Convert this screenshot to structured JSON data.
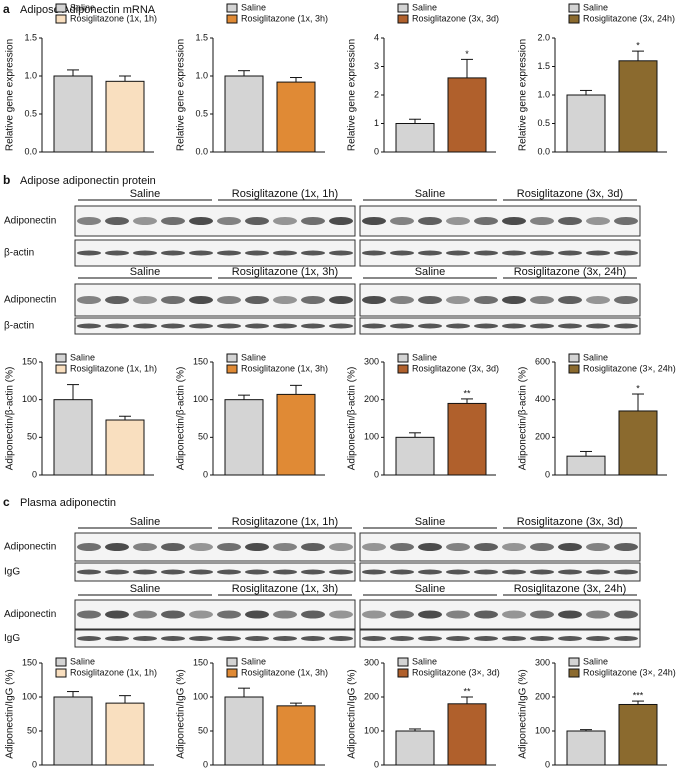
{
  "sections": [
    {
      "letter": "a",
      "title": "Adipose Adiponectin mRNA"
    },
    {
      "letter": "b",
      "title": "Adipose adiponectin protein",
      "blot_rows": [
        {
          "row_labels": [
            "Adiponectin",
            "β-actin"
          ],
          "blots": [
            {
              "groups": [
                "Saline",
                "Rosiglitazone (1x, 1h)"
              ]
            },
            {
              "groups": [
                "Saline",
                "Rosiglitazone (3x, 3d)"
              ]
            }
          ]
        },
        {
          "row_labels": [
            "Adiponectin",
            "β-actin"
          ],
          "blots": [
            {
              "groups": [
                "Saline",
                "Rosiglitazone (1x, 3h)"
              ]
            },
            {
              "groups": [
                "Saline",
                "Rosiglitazone (3x, 24h)"
              ]
            }
          ]
        }
      ]
    },
    {
      "letter": "c",
      "title": "Plasma adiponectin",
      "blot_rows": [
        {
          "row_labels": [
            "Adiponectin",
            "IgG"
          ],
          "blots": [
            {
              "groups": [
                "Saline",
                "Rosiglitazone (1x, 1h)"
              ]
            },
            {
              "groups": [
                "Saline",
                "Rosiglitazone (3x, 3d)"
              ]
            }
          ]
        },
        {
          "row_labels": [
            "Adiponectin",
            "IgG"
          ],
          "blots": [
            {
              "groups": [
                "Saline",
                "Rosiglitazone (1x, 3h)"
              ]
            },
            {
              "groups": [
                "Saline",
                "Rosiglitazone (3x, 24h)"
              ]
            }
          ]
        }
      ]
    }
  ],
  "chart_data": [
    {
      "type": "bar",
      "ylabel": "Relative gene expression",
      "ylim": [
        0,
        1.5
      ],
      "yticks": [
        {
          "value": 0,
          "label": "0.0"
        },
        0.5,
        {
          "value": 1,
          "label": "1.0"
        },
        1.5
      ],
      "series": [
        {
          "name": "Saline",
          "color": "#d4d4d4",
          "values": [
            1.0
          ],
          "errors": [
            0.08
          ]
        },
        {
          "name": "Rosiglitazone (1x, 1h)",
          "color": "#f9dfbf",
          "values": [
            0.93
          ],
          "errors": [
            0.07
          ]
        }
      ]
    },
    {
      "type": "bar",
      "ylabel": "Relative gene expression",
      "ylim": [
        0,
        1.5
      ],
      "yticks": [
        {
          "value": 0,
          "label": "0.0"
        },
        0.5,
        {
          "value": 1,
          "label": "1.0"
        },
        1.5
      ],
      "series": [
        {
          "name": "Saline",
          "color": "#d4d4d4",
          "values": [
            1.0
          ],
          "errors": [
            0.07
          ]
        },
        {
          "name": "Rosiglitazone (1x, 3h)",
          "color": "#e08a35",
          "values": [
            0.92
          ],
          "errors": [
            0.06
          ]
        }
      ]
    },
    {
      "type": "bar",
      "ylabel": "Relative gene expression",
      "ylim": [
        0,
        4
      ],
      "yticks": [
        0,
        1,
        2,
        3,
        4
      ],
      "series": [
        {
          "name": "Saline",
          "color": "#d4d4d4",
          "values": [
            1.0
          ],
          "errors": [
            0.15
          ]
        },
        {
          "name": "Rosiglitazone (3x, 3d)",
          "color": "#b0602c",
          "values": [
            2.6
          ],
          "errors": [
            0.65
          ],
          "annotation": "*"
        }
      ]
    },
    {
      "type": "bar",
      "ylabel": "Relative gene expression",
      "ylim": [
        0,
        2
      ],
      "yticks": [
        {
          "value": 0,
          "label": "0.0"
        },
        0.5,
        {
          "value": 1,
          "label": "1.0"
        },
        1.5,
        {
          "value": 2,
          "label": "2.0"
        }
      ],
      "series": [
        {
          "name": "Saline",
          "color": "#d4d4d4",
          "values": [
            1.0
          ],
          "errors": [
            0.08
          ]
        },
        {
          "name": "Rosiglitazone (3x, 24h)",
          "color": "#8b6a2e",
          "values": [
            1.6
          ],
          "errors": [
            0.17
          ],
          "annotation": "*"
        }
      ]
    },
    {
      "type": "bar",
      "ylabel": "Adiponectin/β-actin (%)",
      "ylim": [
        0,
        150
      ],
      "yticks": [
        0,
        50,
        100,
        150
      ],
      "series": [
        {
          "name": "Saline",
          "color": "#d4d4d4",
          "values": [
            100
          ],
          "errors": [
            20
          ]
        },
        {
          "name": "Rosiglitazone (1x, 1h)",
          "color": "#f9dfbf",
          "values": [
            73
          ],
          "errors": [
            5
          ]
        }
      ]
    },
    {
      "type": "bar",
      "ylabel": "Adiponectin/β-actin (%)",
      "ylim": [
        0,
        150
      ],
      "yticks": [
        0,
        50,
        100,
        150
      ],
      "series": [
        {
          "name": "Saline",
          "color": "#d4d4d4",
          "values": [
            100
          ],
          "errors": [
            6
          ]
        },
        {
          "name": "Rosiglitazone (1x, 3h)",
          "color": "#e08a35",
          "values": [
            107
          ],
          "errors": [
            12
          ]
        }
      ]
    },
    {
      "type": "bar",
      "ylabel": "Adiponectin/β-actin (%)",
      "ylim": [
        0,
        300
      ],
      "yticks": [
        0,
        100,
        200,
        300
      ],
      "series": [
        {
          "name": "Saline",
          "color": "#d4d4d4",
          "values": [
            100
          ],
          "errors": [
            12
          ]
        },
        {
          "name": "Rosiglitazone (3x, 3d)",
          "color": "#b0602c",
          "values": [
            190
          ],
          "errors": [
            12
          ],
          "annotation": "**"
        }
      ]
    },
    {
      "type": "bar",
      "ylabel": "Adiponectin/β-actin (%)",
      "ylim": [
        0,
        600
      ],
      "yticks": [
        0,
        200,
        400,
        600
      ],
      "series": [
        {
          "name": "Saline",
          "color": "#d4d4d4",
          "values": [
            100
          ],
          "errors": [
            25
          ]
        },
        {
          "name": "Rosiglitazone (3×, 24h)",
          "color": "#8b6a2e",
          "values": [
            340
          ],
          "errors": [
            90
          ],
          "annotation": "*"
        }
      ]
    },
    {
      "type": "bar",
      "ylabel": "Adiponectin/IgG (%)",
      "ylim": [
        0,
        150
      ],
      "yticks": [
        0,
        50,
        100,
        150
      ],
      "series": [
        {
          "name": "Saline",
          "color": "#d4d4d4",
          "values": [
            100
          ],
          "errors": [
            8
          ]
        },
        {
          "name": "Rosiglitazone (1x, 1h)",
          "color": "#f9dfbf",
          "values": [
            91
          ],
          "errors": [
            11
          ]
        }
      ]
    },
    {
      "type": "bar",
      "ylabel": "Adiponectin/IgG (%)",
      "ylim": [
        0,
        150
      ],
      "yticks": [
        0,
        50,
        100,
        150
      ],
      "series": [
        {
          "name": "Saline",
          "color": "#d4d4d4",
          "values": [
            100
          ],
          "errors": [
            13
          ]
        },
        {
          "name": "Rosiglitazone (1x, 3h)",
          "color": "#e08a35",
          "values": [
            87
          ],
          "errors": [
            4
          ]
        }
      ]
    },
    {
      "type": "bar",
      "ylabel": "Adiponectin/IgG (%)",
      "ylim": [
        0,
        300
      ],
      "yticks": [
        0,
        100,
        200,
        300
      ],
      "series": [
        {
          "name": "Saline",
          "color": "#d4d4d4",
          "values": [
            100
          ],
          "errors": [
            6
          ]
        },
        {
          "name": "Rosiglitazone (3×, 3d)",
          "color": "#b0602c",
          "values": [
            180
          ],
          "errors": [
            20
          ],
          "annotation": "**"
        }
      ]
    },
    {
      "type": "bar",
      "ylabel": "Adiponectin/IgG (%)",
      "ylim": [
        0,
        300
      ],
      "yticks": [
        0,
        100,
        200,
        300
      ],
      "series": [
        {
          "name": "Saline",
          "color": "#d4d4d4",
          "values": [
            100
          ],
          "errors": [
            4
          ]
        },
        {
          "name": "Rosiglitazone (3×, 24h)",
          "color": "#8b6a2e",
          "values": [
            178
          ],
          "errors": [
            10
          ],
          "annotation": "***"
        }
      ]
    }
  ]
}
